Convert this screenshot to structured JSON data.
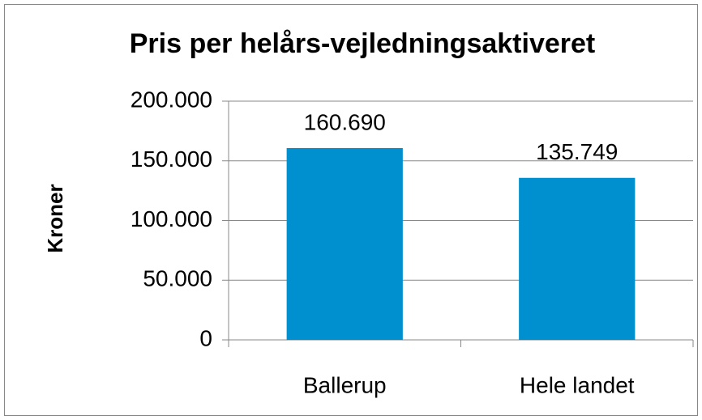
{
  "chart_data": {
    "type": "bar",
    "title": "Pris per helårs-vejledningsaktiveret",
    "y_label": "Kroner",
    "categories": [
      "Ballerup",
      "Hele landet"
    ],
    "values": [
      160690,
      135749
    ],
    "value_labels": [
      "160.690",
      "135.749"
    ],
    "color": "#0090d0",
    "ylim": [
      0,
      200000
    ],
    "yticks": [
      0,
      {
        "value": 50000,
        "label": "50.000"
      },
      {
        "value": 100000,
        "label": "100.000"
      },
      {
        "value": 150000,
        "label": "150.000"
      },
      {
        "value": 200000,
        "label": "200.000"
      }
    ],
    "grid": true
  }
}
